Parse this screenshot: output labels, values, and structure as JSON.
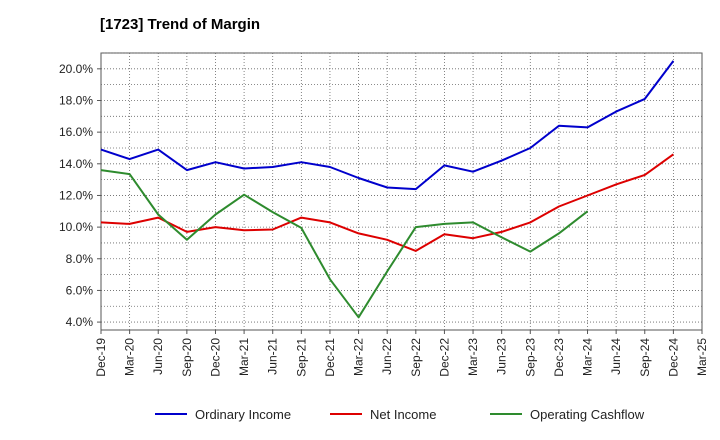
{
  "chart_data": {
    "type": "line",
    "title": "[1723]  Trend of Margin",
    "xlabel": "",
    "ylabel": "",
    "categories": [
      "Dec-19",
      "Mar-20",
      "Jun-20",
      "Sep-20",
      "Dec-20",
      "Mar-21",
      "Jun-21",
      "Sep-21",
      "Dec-21",
      "Mar-22",
      "Jun-22",
      "Sep-22",
      "Dec-22",
      "Mar-23",
      "Jun-23",
      "Sep-23",
      "Dec-23",
      "Mar-24",
      "Jun-24",
      "Sep-24",
      "Dec-24",
      "Mar-25"
    ],
    "y_ticks": [
      "4.0%",
      "6.0%",
      "8.0%",
      "10.0%",
      "12.0%",
      "14.0%",
      "16.0%",
      "18.0%",
      "20.0%"
    ],
    "ylim": [
      3.5,
      21.0
    ],
    "grid": true,
    "legend_position": "bottom",
    "series": [
      {
        "name": "Ordinary Income",
        "color": "#0000cc",
        "values": [
          14.9,
          14.3,
          14.9,
          13.6,
          14.1,
          13.7,
          13.8,
          14.1,
          13.8,
          13.1,
          12.5,
          12.4,
          13.9,
          13.5,
          14.2,
          15.0,
          16.4,
          16.3,
          17.3,
          18.1,
          20.5,
          null
        ]
      },
      {
        "name": "Net Income",
        "color": "#dd0000",
        "values": [
          10.3,
          10.2,
          10.6,
          9.7,
          10.0,
          9.8,
          9.85,
          10.6,
          10.3,
          9.6,
          9.2,
          8.5,
          9.55,
          9.3,
          9.7,
          10.3,
          11.3,
          12.0,
          12.7,
          13.3,
          14.6,
          null
        ]
      },
      {
        "name": "Operating Cashflow",
        "color": "#2e8b2e",
        "values": [
          13.6,
          13.35,
          10.8,
          9.2,
          10.8,
          12.05,
          10.95,
          9.95,
          6.7,
          4.3,
          7.2,
          10.0,
          10.2,
          10.3,
          9.35,
          8.45,
          9.6,
          11.0,
          null,
          null,
          null,
          null
        ]
      }
    ]
  }
}
